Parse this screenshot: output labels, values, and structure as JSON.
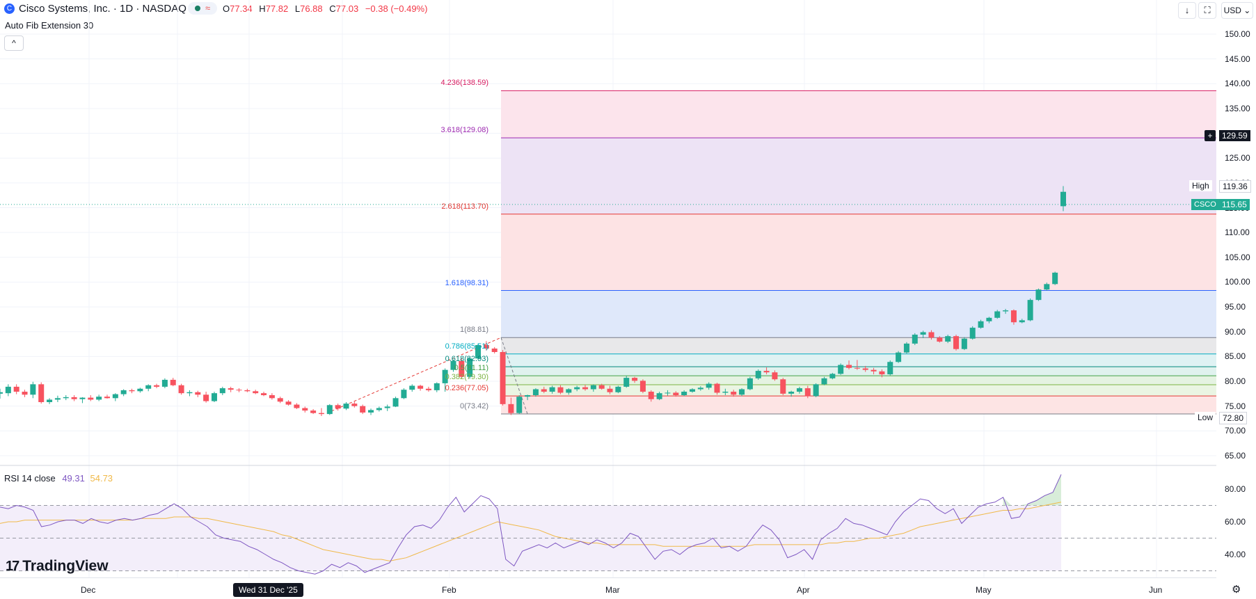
{
  "header": {
    "logo_glyph": "C",
    "title": "Cisco Systems, Inc. · 1D · NASDAQ",
    "status_symbol": "≈",
    "open_label": "O",
    "open": "77.34",
    "high_label": "H",
    "high": "77.82",
    "low_label": "L",
    "low": "76.88",
    "close_label": "C",
    "close": "77.03",
    "change": "−0.38 (−0.49%)",
    "indicator": "Auto Fib Extension 30",
    "collapse_glyph": "^",
    "download_glyph": "↓",
    "fullscreen_glyph": "⛶",
    "currency": "USD ⌄"
  },
  "colors": {
    "up": "#22ab94",
    "down": "#f7525f",
    "rsi": "#7e57c2",
    "rsi_ma": "#f0b949"
  },
  "price_axis": {
    "ticks": [
      "150.00",
      "145.00",
      "140.00",
      "135.00",
      "130.00",
      "125.00",
      "120.00",
      "115.00",
      "110.00",
      "105.00",
      "100.00",
      "95.00",
      "90.00",
      "85.00",
      "80.00",
      "75.00",
      "70.00",
      "65.00"
    ],
    "crosshair_price": "129.59",
    "high_label": "High",
    "high_value": "119.36",
    "symbol_label": "CSCO",
    "last_price": "115.65",
    "low_label": "Low",
    "low_value": "72.80",
    "plus_glyph": "+"
  },
  "fib_levels": [
    {
      "ratio": "4.236",
      "price": 138.59,
      "label": "4.236(138.59)",
      "color": "#d81b60"
    },
    {
      "ratio": "3.618",
      "price": 129.08,
      "label": "3.618(129.08)",
      "color": "#9c27b0"
    },
    {
      "ratio": "2.618",
      "price": 113.7,
      "label": "2.618(113.70)",
      "color": "#e53935"
    },
    {
      "ratio": "1.618",
      "price": 98.31,
      "label": "1.618(98.31)",
      "color": "#2962ff"
    },
    {
      "ratio": "1",
      "price": 88.81,
      "label": "1(88.81)",
      "color": "#787b86"
    },
    {
      "ratio": "0.786",
      "price": 85.51,
      "label": "0.786(85.51)",
      "color": "#00acc1"
    },
    {
      "ratio": "0.618",
      "price": 82.93,
      "label": "0.618(82.93)",
      "color": "#00897b"
    },
    {
      "ratio": "0.5",
      "price": 81.11,
      "label": "0.5(81.11)",
      "color": "#43a047"
    },
    {
      "ratio": "0.382",
      "price": 79.3,
      "label": "0.382(79.30)",
      "color": "#7cb342"
    },
    {
      "ratio": "0.236",
      "price": 77.05,
      "label": "0.236(77.05)",
      "color": "#e53935"
    },
    {
      "ratio": "0",
      "price": 73.42,
      "label": "0(73.42)",
      "color": "#787b86"
    }
  ],
  "rsi": {
    "title": "RSI 14 close",
    "value": "49.31",
    "ma_value": "54.73",
    "ticks": [
      "80.00",
      "60.00",
      "40.00"
    ],
    "levels": [
      70,
      50,
      30
    ]
  },
  "time_axis": {
    "labels": [
      "Dec",
      "Feb",
      "Mar",
      "Apr",
      "May",
      "Jun"
    ],
    "crosshair_date": "Wed 31 Dec '25"
  },
  "brand": {
    "name": "TradingView",
    "mark": "17"
  },
  "settings_glyph": "⚙",
  "chart_data": {
    "type": "candlestick",
    "symbol": "CSCO",
    "interval": "1D",
    "ohlc": [
      [
        77.5,
        78.5,
        76.5,
        77.8
      ],
      [
        77.6,
        79.4,
        77.0,
        78.9
      ],
      [
        78.9,
        79.4,
        77.4,
        77.9
      ],
      [
        77.9,
        78.3,
        76.8,
        77.3
      ],
      [
        77.3,
        79.9,
        76.6,
        79.4
      ],
      [
        79.4,
        79.8,
        75.5,
        75.8
      ],
      [
        75.8,
        76.6,
        75.4,
        76.3
      ],
      [
        76.3,
        77.1,
        75.8,
        76.6
      ],
      [
        76.6,
        77.2,
        76.2,
        76.8
      ],
      [
        76.8,
        77.2,
        76.0,
        76.4
      ],
      [
        76.4,
        76.8,
        75.6,
        76.7
      ],
      [
        76.7,
        77.2,
        76.0,
        76.3
      ],
      [
        76.3,
        77.3,
        76.0,
        76.9
      ],
      [
        76.9,
        77.3,
        76.5,
        76.6
      ],
      [
        76.6,
        77.6,
        76.0,
        77.4
      ],
      [
        77.4,
        78.4,
        77.0,
        78.2
      ],
      [
        78.2,
        78.5,
        77.6,
        78.0
      ],
      [
        78.0,
        78.7,
        77.7,
        78.5
      ],
      [
        78.5,
        79.4,
        78.0,
        79.2
      ],
      [
        79.2,
        79.5,
        78.6,
        78.9
      ],
      [
        78.9,
        80.6,
        78.6,
        80.3
      ],
      [
        80.3,
        80.7,
        79.0,
        79.2
      ],
      [
        79.2,
        79.5,
        77.3,
        77.6
      ],
      [
        77.6,
        78.2,
        77.0,
        77.8
      ],
      [
        77.8,
        78.1,
        76.8,
        77.3
      ],
      [
        77.3,
        77.9,
        75.7,
        76.0
      ],
      [
        76.0,
        77.9,
        75.8,
        77.6
      ],
      [
        77.6,
        78.9,
        77.2,
        78.6
      ],
      [
        78.6,
        78.9,
        77.8,
        78.3
      ],
      [
        78.3,
        78.6,
        77.8,
        78.2
      ],
      [
        78.2,
        78.5,
        77.8,
        78.0
      ],
      [
        78.0,
        78.3,
        77.4,
        77.6
      ],
      [
        77.6,
        77.9,
        77.0,
        77.2
      ],
      [
        77.2,
        77.6,
        76.3,
        76.6
      ],
      [
        76.6,
        76.9,
        75.6,
        75.9
      ],
      [
        75.9,
        76.2,
        75.1,
        75.3
      ],
      [
        75.3,
        75.6,
        74.4,
        74.6
      ],
      [
        74.6,
        74.9,
        73.7,
        74.1
      ],
      [
        74.1,
        74.4,
        73.4,
        73.6
      ],
      [
        73.6,
        74.6,
        73.0,
        73.4
      ],
      [
        73.4,
        75.4,
        73.2,
        75.2
      ],
      [
        75.2,
        75.5,
        74.1,
        74.5
      ],
      [
        74.5,
        75.8,
        74.2,
        75.5
      ],
      [
        75.5,
        75.9,
        74.7,
        75.0
      ],
      [
        75.0,
        75.3,
        73.4,
        73.7
      ],
      [
        73.7,
        74.5,
        73.2,
        74.2
      ],
      [
        74.2,
        74.9,
        73.9,
        74.6
      ],
      [
        74.6,
        75.3,
        74.0,
        74.9
      ],
      [
        74.9,
        76.9,
        74.8,
        76.6
      ],
      [
        76.6,
        78.6,
        76.4,
        78.3
      ],
      [
        78.3,
        79.4,
        77.9,
        79.1
      ],
      [
        79.1,
        79.3,
        78.1,
        78.5
      ],
      [
        78.5,
        78.9,
        77.9,
        78.2
      ],
      [
        78.2,
        79.8,
        77.8,
        79.6
      ],
      [
        79.6,
        82.6,
        77.9,
        82.3
      ],
      [
        82.3,
        84.4,
        81.9,
        84.1
      ],
      [
        84.1,
        84.7,
        80.6,
        80.9
      ],
      [
        80.9,
        84.9,
        80.5,
        84.6
      ],
      [
        84.6,
        87.6,
        84.3,
        87.3
      ],
      [
        87.3,
        88.1,
        86.2,
        86.6
      ],
      [
        86.6,
        86.9,
        85.6,
        85.9
      ],
      [
        85.9,
        86.3,
        75.1,
        75.4
      ],
      [
        75.4,
        76.7,
        73.2,
        73.6
      ],
      [
        73.6,
        77.2,
        73.4,
        76.9
      ],
      [
        76.9,
        77.3,
        76.2,
        77.2
      ],
      [
        77.2,
        78.6,
        76.9,
        78.4
      ],
      [
        78.4,
        78.9,
        77.6,
        77.9
      ],
      [
        77.9,
        79.1,
        77.5,
        78.8
      ],
      [
        78.8,
        79.2,
        77.4,
        77.7
      ],
      [
        77.7,
        78.6,
        77.3,
        78.4
      ],
      [
        78.4,
        79.1,
        78.0,
        78.8
      ],
      [
        78.8,
        79.3,
        78.1,
        78.4
      ],
      [
        78.4,
        79.4,
        77.9,
        79.2
      ],
      [
        79.2,
        79.5,
        78.3,
        78.5
      ],
      [
        78.5,
        79.1,
        77.4,
        77.8
      ],
      [
        77.8,
        79.1,
        77.6,
        78.9
      ],
      [
        78.9,
        81.1,
        78.7,
        80.7
      ],
      [
        80.7,
        80.9,
        79.7,
        80.1
      ],
      [
        80.1,
        80.4,
        77.6,
        77.9
      ],
      [
        77.9,
        78.2,
        75.9,
        76.4
      ],
      [
        76.4,
        77.9,
        76.2,
        77.6
      ],
      [
        77.6,
        78.2,
        77.1,
        77.7
      ],
      [
        77.7,
        78.0,
        76.9,
        77.2
      ],
      [
        77.2,
        78.2,
        77.0,
        77.9
      ],
      [
        77.9,
        78.6,
        77.7,
        78.4
      ],
      [
        78.4,
        79.0,
        78.1,
        78.7
      ],
      [
        78.7,
        79.8,
        78.3,
        79.5
      ],
      [
        79.5,
        79.7,
        77.3,
        77.7
      ],
      [
        77.7,
        78.5,
        77.2,
        77.9
      ],
      [
        77.9,
        78.3,
        76.9,
        77.3
      ],
      [
        77.3,
        78.6,
        77.0,
        78.4
      ],
      [
        78.4,
        80.9,
        78.2,
        80.6
      ],
      [
        80.6,
        82.4,
        80.3,
        82.1
      ],
      [
        82.1,
        82.8,
        81.4,
        81.8
      ],
      [
        81.8,
        82.2,
        80.1,
        80.4
      ],
      [
        80.4,
        80.7,
        77.2,
        77.5
      ],
      [
        77.5,
        78.1,
        76.9,
        77.9
      ],
      [
        77.9,
        78.9,
        77.5,
        78.6
      ],
      [
        78.6,
        79.1,
        76.6,
        77.0
      ],
      [
        77.0,
        79.6,
        76.8,
        79.4
      ],
      [
        79.4,
        80.9,
        79.2,
        80.6
      ],
      [
        80.6,
        81.7,
        80.4,
        81.5
      ],
      [
        81.5,
        83.6,
        81.3,
        83.3
      ],
      [
        83.3,
        84.2,
        82.4,
        82.7
      ],
      [
        82.7,
        84.3,
        82.3,
        82.6
      ],
      [
        82.6,
        83.1,
        81.9,
        82.3
      ],
      [
        82.3,
        82.7,
        81.4,
        82.0
      ],
      [
        82.0,
        82.4,
        80.8,
        81.4
      ],
      [
        81.4,
        84.2,
        81.2,
        83.9
      ],
      [
        83.9,
        86.1,
        83.7,
        85.8
      ],
      [
        85.8,
        87.9,
        85.6,
        87.6
      ],
      [
        87.6,
        89.7,
        87.3,
        89.4
      ],
      [
        89.4,
        90.2,
        88.7,
        89.9
      ],
      [
        89.9,
        90.3,
        88.4,
        88.8
      ],
      [
        88.8,
        89.1,
        87.8,
        88.0
      ],
      [
        88.0,
        89.4,
        87.7,
        89.1
      ],
      [
        89.1,
        89.4,
        86.2,
        86.5
      ],
      [
        86.5,
        88.9,
        86.3,
        88.6
      ],
      [
        88.6,
        91.1,
        88.4,
        90.8
      ],
      [
        90.8,
        92.4,
        90.6,
        92.1
      ],
      [
        92.1,
        93.0,
        91.7,
        92.8
      ],
      [
        92.8,
        94.4,
        92.6,
        94.1
      ],
      [
        94.1,
        94.6,
        93.6,
        94.3
      ],
      [
        94.3,
        94.5,
        91.4,
        91.9
      ],
      [
        91.9,
        92.6,
        91.7,
        92.3
      ],
      [
        92.3,
        96.7,
        92.1,
        96.4
      ],
      [
        96.4,
        98.7,
        96.2,
        98.5
      ],
      [
        98.5,
        99.9,
        98.3,
        99.6
      ],
      [
        99.6,
        102.1,
        99.4,
        101.9
      ],
      [
        115.3,
        119.36,
        114.3,
        118.2
      ]
    ],
    "rsi": [
      69,
      68,
      70,
      69,
      67,
      57,
      58,
      60,
      61,
      61,
      59,
      62,
      60,
      59,
      61,
      62,
      61,
      62,
      64,
      65,
      68,
      71,
      68,
      63,
      60,
      57,
      52,
      50,
      49,
      48,
      45,
      43,
      40,
      37,
      35,
      32,
      30,
      29,
      28,
      30,
      34,
      32,
      35,
      33,
      29,
      31,
      33,
      35,
      44,
      52,
      57,
      58,
      56,
      61,
      69,
      75,
      66,
      71,
      76,
      74,
      68,
      37,
      33,
      42,
      44,
      46,
      44,
      47,
      44,
      46,
      48,
      46,
      49,
      47,
      44,
      47,
      53,
      51,
      44,
      37,
      42,
      43,
      40,
      44,
      46,
      47,
      50,
      44,
      45,
      42,
      45,
      52,
      58,
      55,
      49,
      38,
      40,
      43,
      37,
      49,
      53,
      56,
      62,
      59,
      58,
      56,
      54,
      52,
      60,
      66,
      70,
      74,
      73,
      68,
      65,
      68,
      59,
      64,
      69,
      71,
      72,
      75,
      62,
      63,
      71,
      73,
      76,
      78,
      89
    ],
    "rsi_ma": [
      59,
      60,
      60,
      61,
      61,
      61,
      61,
      61,
      61,
      61,
      61,
      61,
      61,
      61,
      61,
      61,
      61,
      62,
      62,
      62,
      62,
      63,
      63,
      63,
      62,
      62,
      61,
      60,
      59,
      58,
      57,
      56,
      55,
      54,
      52,
      51,
      49,
      47,
      45,
      43,
      42,
      41,
      40,
      39,
      38,
      37,
      37,
      36,
      37,
      38,
      40,
      42,
      44,
      46,
      48,
      50,
      52,
      54,
      56,
      58,
      60,
      59,
      58,
      57,
      56,
      55,
      53,
      51,
      50,
      49,
      48,
      47,
      47,
      46,
      46,
      46,
      46,
      46,
      46,
      46,
      45,
      45,
      45,
      45,
      45,
      45,
      45,
      45,
      45,
      45,
      45,
      46,
      46,
      46,
      46,
      46,
      46,
      46,
      46,
      46,
      47,
      47,
      48,
      48,
      49,
      50,
      50,
      51,
      52,
      53,
      55,
      57,
      58,
      59,
      60,
      61,
      62,
      63,
      64,
      65,
      66,
      67,
      67,
      68,
      68,
      69,
      70,
      71,
      72
    ]
  }
}
